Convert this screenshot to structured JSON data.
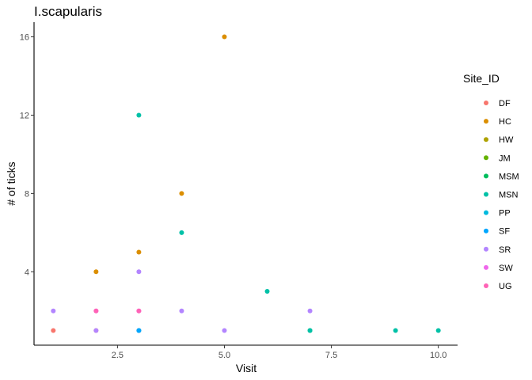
{
  "chart_data": {
    "type": "scatter",
    "title": "I.scapularis",
    "xlabel": "Visit",
    "ylabel": "# of ticks",
    "xlim": [
      0.55,
      10.45
    ],
    "ylim": [
      0.25,
      16.75
    ],
    "x_ticks": [
      2.5,
      5.0,
      7.5,
      10.0
    ],
    "x_tick_labels": [
      "2.5",
      "5.0",
      "7.5",
      "10.0"
    ],
    "y_ticks": [
      4,
      8,
      12,
      16
    ],
    "y_tick_labels": [
      "4",
      "8",
      "12",
      "16"
    ],
    "grid": false,
    "legend": {
      "title": "Site_ID",
      "position": "right"
    },
    "series": [
      {
        "name": "DF",
        "color": "#F8766D",
        "points": [
          [
            1,
            1
          ],
          [
            2,
            1
          ],
          [
            3,
            1
          ]
        ]
      },
      {
        "name": "HC",
        "color": "#DB8E00",
        "points": [
          [
            2,
            4
          ],
          [
            3,
            5
          ],
          [
            4,
            8
          ],
          [
            5,
            16
          ]
        ]
      },
      {
        "name": "HW",
        "color": "#AEA200",
        "points": []
      },
      {
        "name": "JM",
        "color": "#64B200",
        "points": []
      },
      {
        "name": "MSM",
        "color": "#00BD5C",
        "points": [
          [
            7,
            1
          ]
        ]
      },
      {
        "name": "MSN",
        "color": "#00C1A7",
        "points": [
          [
            3,
            12
          ],
          [
            4,
            6
          ],
          [
            6,
            3
          ],
          [
            7,
            1
          ],
          [
            9,
            1
          ],
          [
            10,
            1
          ]
        ]
      },
      {
        "name": "PP",
        "color": "#00BADE",
        "points": [
          [
            3,
            1
          ]
        ]
      },
      {
        "name": "SF",
        "color": "#00A6FF",
        "points": [
          [
            3,
            1
          ]
        ]
      },
      {
        "name": "SR",
        "color": "#B385FF",
        "points": [
          [
            1,
            2
          ],
          [
            2,
            1
          ],
          [
            3,
            4
          ],
          [
            4,
            2
          ],
          [
            5,
            1
          ],
          [
            7,
            2
          ]
        ]
      },
      {
        "name": "SW",
        "color": "#EF67EB",
        "points": [
          [
            2,
            2
          ],
          [
            3,
            2
          ]
        ]
      },
      {
        "name": "UG",
        "color": "#FF63B6",
        "points": [
          [
            2,
            2
          ],
          [
            3,
            2
          ]
        ]
      }
    ]
  }
}
